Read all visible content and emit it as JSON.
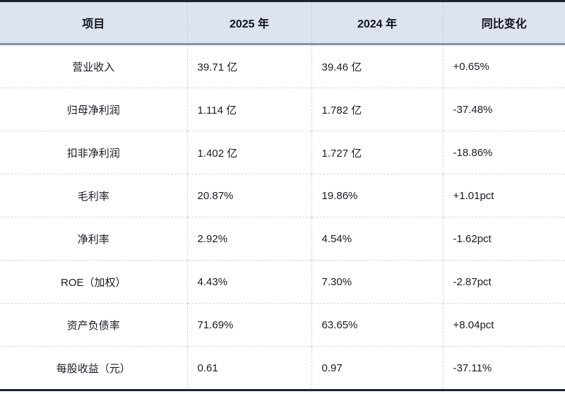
{
  "table": {
    "headers": [
      {
        "label": "项目"
      },
      {
        "label": "2025 年"
      },
      {
        "label": "2024 年"
      },
      {
        "label": "同比变化"
      }
    ],
    "rows": [
      {
        "cells": [
          "营业收入",
          "39.71 亿",
          "39.46 亿",
          "+0.65%"
        ]
      },
      {
        "cells": [
          "归母净利润",
          "1.114 亿",
          "1.782 亿",
          "-37.48%"
        ]
      },
      {
        "cells": [
          "扣非净利润",
          "1.402 亿",
          "1.727 亿",
          "-18.86%"
        ]
      },
      {
        "cells": [
          "毛利率",
          "20.87%",
          "19.86%",
          "+1.01pct"
        ]
      },
      {
        "cells": [
          "净利率",
          "2.92%",
          "4.54%",
          "-1.62pct"
        ]
      },
      {
        "cells": [
          "ROE（加权）",
          "4.43%",
          "7.30%",
          "-2.87pct"
        ]
      },
      {
        "cells": [
          "资产负债率",
          "71.69%",
          "63.65%",
          "+8.04pct"
        ]
      },
      {
        "cells": [
          "每股收益（元）",
          "0.61",
          "0.97",
          "-37.11%"
        ]
      }
    ]
  },
  "colors": {
    "header_background": "#dde3ef",
    "header_underline": "#8094aa",
    "outer_border": "#1b2432",
    "grid_dashed": "#d9d9d9",
    "text": "#1a1a22"
  }
}
